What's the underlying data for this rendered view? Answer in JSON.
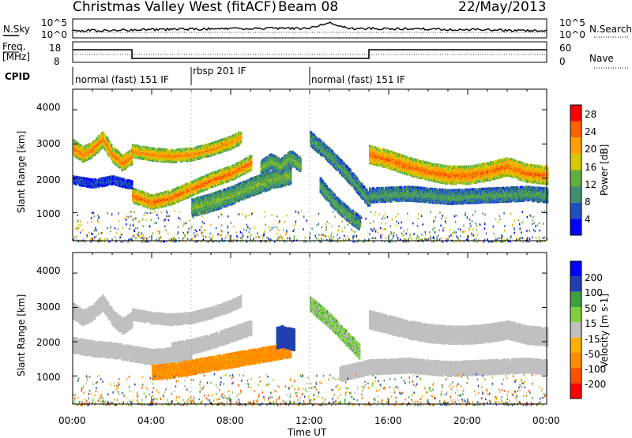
{
  "header": {
    "station": "Christmas Valley West (fitACF)",
    "beam": "Beam 08",
    "date": "22/May/2013"
  },
  "noise_panel": {
    "left_label": "N.Sky",
    "right_label": "N.Search",
    "tick_top": "10^5",
    "tick_bottom": "10^0"
  },
  "freq_panel": {
    "left_label_1": "Freq.",
    "left_label_2": "[MHz]",
    "right_label": "Nave",
    "left_ticks": [
      "18",
      "8"
    ],
    "right_ticks": [
      "60",
      "0"
    ]
  },
  "cpid_panel": {
    "label": "CPID",
    "segments": [
      {
        "label": "normal (fast) 151 IF",
        "start_h": 0,
        "end_h": 6
      },
      {
        "label": "rbsp 201 IF",
        "start_h": 6,
        "end_h": 12
      },
      {
        "label": "normal (fast) 151 IF",
        "start_h": 12,
        "end_h": 24
      }
    ]
  },
  "colors": {
    "power": [
      "#0000ff",
      "#2050c0",
      "#409070",
      "#60b040",
      "#d8c800",
      "#ffa000",
      "#ff6000",
      "#ff0000"
    ],
    "velocity": [
      "#ff0000",
      "#ff5000",
      "#ff8a00",
      "#ffb000",
      "#c0c0c0",
      "#80d040",
      "#40a040",
      "#2040b0",
      "#0000ff"
    ],
    "ground": "#c0c0c0"
  },
  "chart_data": [
    {
      "type": "heatmap",
      "panel": "power",
      "ylabel": "Slant Range [km]",
      "xlim_hours": [
        0,
        24
      ],
      "ylim_km": [
        180,
        4600
      ],
      "yticks": [
        "4000",
        "3000",
        "2000",
        "1000"
      ],
      "colorbar": {
        "label": "Power [dB]",
        "ticks": [
          "28",
          "24",
          "20",
          "16",
          "12",
          "8",
          "4"
        ]
      },
      "bands": [
        {
          "name": "upper-f-region-early",
          "t": [
            0,
            0.5,
            1,
            1.5,
            2,
            2.5,
            3
          ],
          "r": [
            2900,
            2700,
            2850,
            3150,
            2700,
            2450,
            2650
          ],
          "w": 220,
          "power": 25
        },
        {
          "name": "morning-upper",
          "t": [
            3,
            4,
            5,
            6,
            7,
            8,
            8.5
          ],
          "r": [
            2800,
            2700,
            2650,
            2700,
            2850,
            3050,
            3200
          ],
          "w": 180,
          "power": 24
        },
        {
          "name": "morning-lower",
          "t": [
            3,
            4,
            5,
            6,
            7,
            8,
            9
          ],
          "r": [
            1500,
            1300,
            1450,
            1700,
            1950,
            2150,
            2450
          ],
          "w": 200,
          "power": 26
        },
        {
          "name": "midday-weak",
          "t": [
            6,
            7,
            8,
            9,
            10,
            11
          ],
          "r": [
            1150,
            1300,
            1500,
            1750,
            1950,
            2100
          ],
          "w": 260,
          "power": 15
        },
        {
          "name": "midday-high",
          "t": [
            9.5,
            10,
            10.5,
            11,
            11.5
          ],
          "r": [
            2300,
            2500,
            2350,
            2600,
            2400
          ],
          "w": 200,
          "power": 15
        },
        {
          "name": "post-noon-descending",
          "t": [
            12,
            12.5,
            13,
            13.5,
            14,
            14.5,
            15
          ],
          "r": [
            3150,
            2900,
            2650,
            2350,
            2050,
            1700,
            1350
          ],
          "w": 200,
          "power": 12
        },
        {
          "name": "afternoon-low",
          "t": [
            12.5,
            13,
            13.5,
            14,
            14.5
          ],
          "r": [
            1800,
            1450,
            1150,
            900,
            700
          ],
          "w": 200,
          "power": 13
        },
        {
          "name": "afternoon-main",
          "t": [
            15,
            16,
            17,
            18,
            19,
            20,
            21,
            22,
            23,
            24
          ],
          "r": [
            2700,
            2550,
            2350,
            2200,
            2100,
            2100,
            2200,
            2350,
            2150,
            2100
          ],
          "w": 260,
          "power": 26
        },
        {
          "name": "afternoon-sub",
          "t": [
            15,
            17,
            19,
            21,
            23,
            24
          ],
          "r": [
            1500,
            1550,
            1450,
            1500,
            1550,
            1500
          ],
          "w": 200,
          "power": 12
        },
        {
          "name": "early-near",
          "t": [
            0,
            1,
            2,
            3
          ],
          "r": [
            1950,
            1850,
            1950,
            1800
          ],
          "w": 120,
          "power": 6
        }
      ]
    },
    {
      "type": "heatmap",
      "panel": "velocity",
      "xlabel": "Time UT",
      "ylabel": "Slant Range [km]",
      "xlim_hours": [
        0,
        24
      ],
      "ylim_km": [
        180,
        4600
      ],
      "yticks": [
        "4000",
        "3000",
        "2000",
        "1000"
      ],
      "xticks": [
        "00:00",
        "04:00",
        "08:00",
        "12:00",
        "16:00",
        "20:00",
        "00:00"
      ],
      "colorbar": {
        "label": "Velocity [m s-1]",
        "ticks": [
          "200",
          "100",
          "50",
          "15",
          "-15",
          "-50",
          "-100",
          "-200"
        ]
      },
      "bands": [
        {
          "name": "gs-early-upper",
          "t": [
            0,
            0.5,
            1,
            1.5,
            2,
            2.5,
            3
          ],
          "r": [
            2900,
            2700,
            2850,
            3150,
            2700,
            2450,
            2650
          ],
          "w": 220,
          "vel": 0
        },
        {
          "name": "gs-early-lower",
          "t": [
            0,
            1,
            2,
            3,
            4,
            5,
            6
          ],
          "r": [
            1900,
            1800,
            1750,
            1650,
            1550,
            1600,
            1700
          ],
          "w": 220,
          "vel": 0
        },
        {
          "name": "gs-morning-upper",
          "t": [
            3,
            4,
            5,
            6,
            7,
            8,
            8.5
          ],
          "r": [
            2800,
            2700,
            2650,
            2700,
            2850,
            3050,
            3200
          ],
          "w": 160,
          "vel": 0
        },
        {
          "name": "gs-morning-mid",
          "t": [
            5,
            6,
            7,
            8,
            9
          ],
          "r": [
            1750,
            1850,
            2000,
            2200,
            2400
          ],
          "w": 200,
          "vel": 0
        },
        {
          "name": "orange-morning",
          "t": [
            4,
            5,
            6,
            7,
            8,
            9,
            10,
            11
          ],
          "r": [
            1100,
            1150,
            1250,
            1350,
            1450,
            1550,
            1650,
            1750
          ],
          "w": 200,
          "vel": -70
        },
        {
          "name": "red-blue-block",
          "t": [
            10.3,
            10.6,
            10.9,
            11.2
          ],
          "r": [
            2100,
            2150,
            2100,
            2050
          ],
          "w": 300,
          "vel": 150
        },
        {
          "name": "green-descending",
          "t": [
            12,
            12.5,
            13,
            13.5,
            14,
            14.5
          ],
          "r": [
            3100,
            2850,
            2600,
            2300,
            2000,
            1700
          ],
          "w": 200,
          "vel": 30
        },
        {
          "name": "gs-afternoon-main",
          "t": [
            15,
            16,
            17,
            18,
            19,
            20,
            21,
            22,
            23,
            24
          ],
          "r": [
            2650,
            2500,
            2350,
            2250,
            2200,
            2200,
            2250,
            2350,
            2200,
            2150
          ],
          "w": 260,
          "vel": 0
        },
        {
          "name": "gs-afternoon-low",
          "t": [
            13.5,
            15,
            17,
            19,
            21,
            23,
            24
          ],
          "r": [
            1050,
            1250,
            1300,
            1200,
            1250,
            1300,
            1250
          ],
          "w": 200,
          "vel": 0
        }
      ]
    }
  ]
}
